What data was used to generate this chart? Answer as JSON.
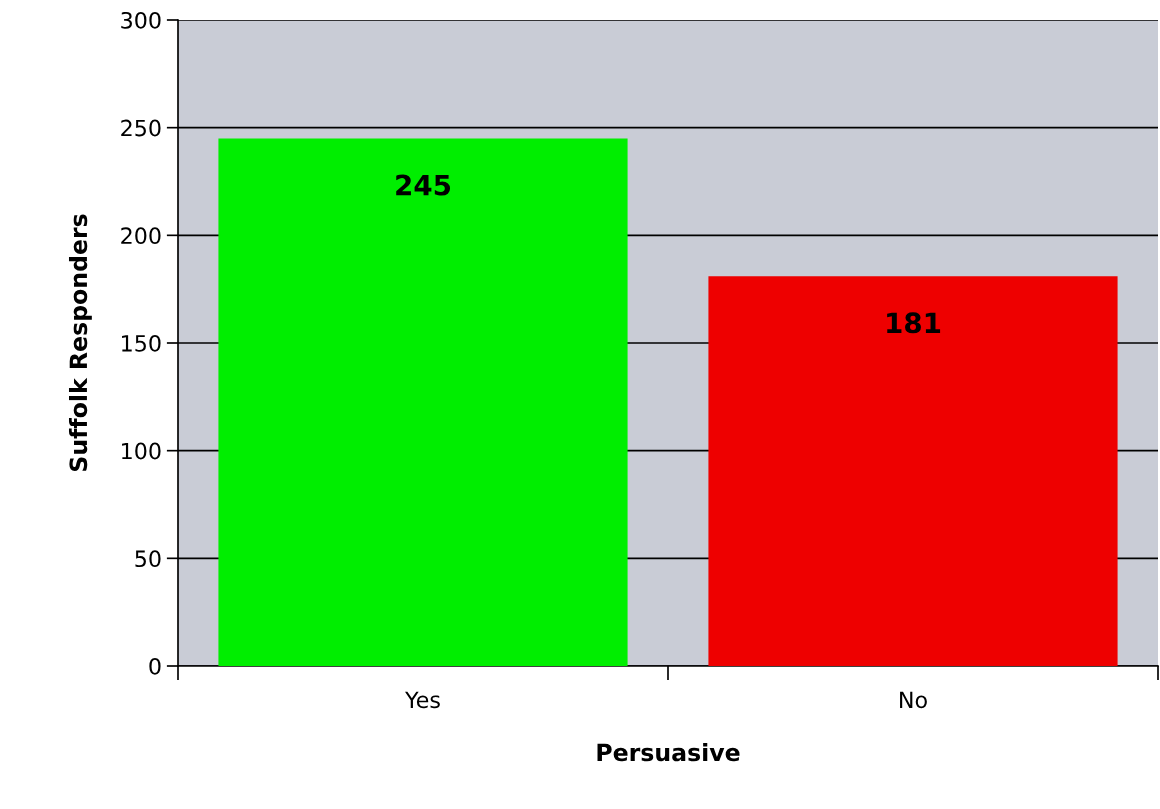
{
  "chart_data": {
    "type": "bar",
    "xlabel": "Persuasive",
    "ylabel": "Suffolk Responders",
    "categories": [
      "Yes",
      "No"
    ],
    "values": [
      245,
      181
    ],
    "colors": [
      "#00ee00",
      "#ee0000"
    ],
    "ylim": [
      0,
      300
    ],
    "yticks": [
      0,
      50,
      100,
      150,
      200,
      250,
      300
    ],
    "grid": "y",
    "data_labels": true
  }
}
